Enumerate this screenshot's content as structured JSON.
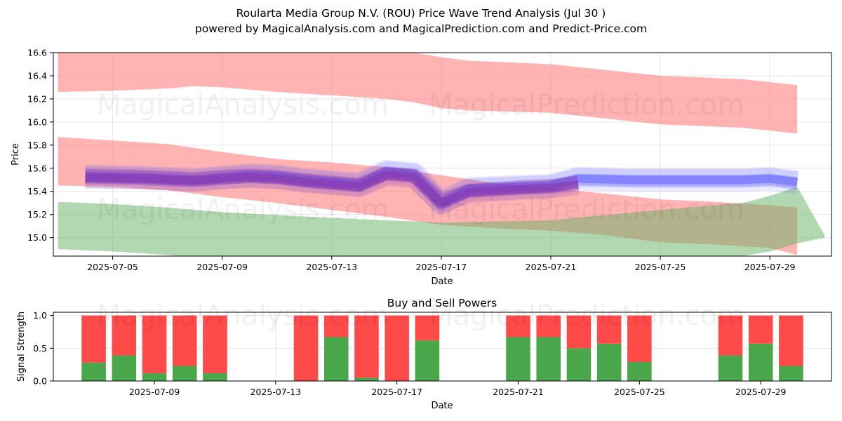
{
  "title": "Roularta Media Group N.V. (ROU) Price Wave Trend Analysis (Jul 30 )",
  "subtitle": "powered by MagicalAnalysis.com and MagicalPrediction.com and Predict-Price.com",
  "watermarks": [
    "MagicalAnalysis.com",
    "MagicalPrediction.com"
  ],
  "colors": {
    "upper_band": "#ff8080",
    "lower_band": "#66b266",
    "mid_band": "#ff8080",
    "actual_wave": "#5555ff",
    "predicted_wave": "#8833aa",
    "buy": "#4aa64a",
    "sell": "#ff4a4a"
  },
  "chart_data": [
    {
      "type": "area",
      "title": "",
      "xlabel": "Date",
      "ylabel": "Price",
      "ylim": [
        14.84,
        16.6
      ],
      "xlim": [
        "2025-07-02T20:00",
        "2025-07-31T06:00"
      ],
      "x_ticks": [
        "2025-07-05",
        "2025-07-09",
        "2025-07-13",
        "2025-07-17",
        "2025-07-21",
        "2025-07-25",
        "2025-07-29"
      ],
      "y_ticks": [
        15.0,
        15.2,
        15.4,
        15.6,
        15.8,
        16.0,
        16.2,
        16.4,
        16.6
      ],
      "grid": true,
      "bands": [
        {
          "name": "upper",
          "x": [
            "2025-07-03",
            "2025-07-05",
            "2025-07-07",
            "2025-07-08",
            "2025-07-09",
            "2025-07-11",
            "2025-07-13",
            "2025-07-15",
            "2025-07-16",
            "2025-07-17",
            "2025-07-18",
            "2025-07-21",
            "2025-07-23",
            "2025-07-25",
            "2025-07-28",
            "2025-07-30"
          ],
          "top": [
            16.78,
            16.78,
            16.76,
            16.74,
            16.73,
            16.68,
            16.65,
            16.62,
            16.6,
            16.56,
            16.53,
            16.5,
            16.45,
            16.4,
            16.37,
            16.32
          ],
          "bottom": [
            16.26,
            16.27,
            16.29,
            16.31,
            16.3,
            16.26,
            16.23,
            16.2,
            16.17,
            16.12,
            16.1,
            16.08,
            16.03,
            15.98,
            15.95,
            15.9
          ]
        },
        {
          "name": "middle",
          "x": [
            "2025-07-03",
            "2025-07-05",
            "2025-07-07",
            "2025-07-09",
            "2025-07-11",
            "2025-07-13",
            "2025-07-15",
            "2025-07-17",
            "2025-07-19",
            "2025-07-21",
            "2025-07-23",
            "2025-07-25",
            "2025-07-27",
            "2025-07-29",
            "2025-07-30"
          ],
          "top": [
            15.87,
            15.84,
            15.81,
            15.74,
            15.68,
            15.65,
            15.61,
            15.54,
            15.47,
            15.43,
            15.38,
            15.33,
            15.31,
            15.28,
            15.26
          ],
          "bottom": [
            15.45,
            15.44,
            15.41,
            15.35,
            15.3,
            15.24,
            15.18,
            15.11,
            15.08,
            15.06,
            15.02,
            14.96,
            14.94,
            14.91,
            14.85
          ]
        },
        {
          "name": "lower",
          "x": [
            "2025-07-03",
            "2025-07-05",
            "2025-07-07",
            "2025-07-09",
            "2025-07-13",
            "2025-07-17",
            "2025-07-21",
            "2025-07-25",
            "2025-07-28",
            "2025-07-29",
            "2025-07-30",
            "2025-07-31"
          ],
          "top": [
            15.31,
            15.29,
            15.26,
            15.22,
            15.17,
            15.13,
            15.15,
            15.24,
            15.3,
            15.36,
            15.44,
            15.02
          ],
          "bottom": [
            14.9,
            14.88,
            14.85,
            14.8,
            14.76,
            14.72,
            14.72,
            14.78,
            14.84,
            14.88,
            14.95,
            15.0
          ]
        }
      ],
      "series": [
        {
          "name": "",
          "role": "actual",
          "x": [
            "2025-07-04",
            "2025-07-06",
            "2025-07-08",
            "2025-07-09",
            "2025-07-10",
            "2025-07-11",
            "2025-07-12",
            "2025-07-13",
            "2025-07-14",
            "2025-07-15",
            "2025-07-16",
            "2025-07-17",
            "2025-07-18",
            "2025-07-20",
            "2025-07-21",
            "2025-07-22",
            "2025-07-24",
            "2025-07-26",
            "2025-07-28",
            "2025-07-29",
            "2025-07-30"
          ],
          "values": [
            15.53,
            15.52,
            15.5,
            15.52,
            15.54,
            15.53,
            15.5,
            15.48,
            15.46,
            15.57,
            15.55,
            15.3,
            15.42,
            15.44,
            15.45,
            15.51,
            15.5,
            15.5,
            15.5,
            15.51,
            15.48
          ]
        },
        {
          "name": "",
          "role": "predicted",
          "x": [
            "2025-07-04",
            "2025-07-06",
            "2025-07-08",
            "2025-07-09",
            "2025-07-10",
            "2025-07-11",
            "2025-07-12",
            "2025-07-13",
            "2025-07-14",
            "2025-07-15",
            "2025-07-16",
            "2025-07-17",
            "2025-07-18",
            "2025-07-20",
            "2025-07-21",
            "2025-07-22"
          ],
          "values": [
            15.52,
            15.51,
            15.49,
            15.51,
            15.52,
            15.51,
            15.48,
            15.46,
            15.44,
            15.54,
            15.52,
            15.3,
            15.39,
            15.42,
            15.43,
            15.46
          ]
        }
      ]
    },
    {
      "type": "bar",
      "title": "Buy and Sell Powers",
      "xlabel": "Date",
      "ylabel": "Signal Strength",
      "ylim": [
        0,
        1.05
      ],
      "xlim": [
        "2025-07-05T16:00",
        "2025-07-31T08:00"
      ],
      "x_ticks": [
        "2025-07-09",
        "2025-07-13",
        "2025-07-17",
        "2025-07-21",
        "2025-07-25",
        "2025-07-29"
      ],
      "y_ticks": [
        0.0,
        0.5,
        1.0
      ],
      "grid": true,
      "categories": [
        "2025-07-07",
        "2025-07-08",
        "2025-07-09",
        "2025-07-10",
        "2025-07-11",
        "2025-07-14",
        "2025-07-15",
        "2025-07-16",
        "2025-07-17",
        "2025-07-18",
        "2025-07-21",
        "2025-07-22",
        "2025-07-23",
        "2025-07-24",
        "2025-07-25",
        "2025-07-28",
        "2025-07-29",
        "2025-07-30"
      ],
      "series": [
        {
          "name": "",
          "role": "buy",
          "values": [
            0.28,
            0.39,
            0.12,
            0.23,
            0.12,
            0.0,
            0.67,
            0.05,
            0.0,
            0.62,
            0.67,
            0.67,
            0.5,
            0.57,
            0.29,
            0.39,
            0.57,
            0.23
          ]
        },
        {
          "name": "",
          "role": "sell",
          "values": [
            0.72,
            0.61,
            0.88,
            0.77,
            0.88,
            1.0,
            0.33,
            0.95,
            1.0,
            0.38,
            0.33,
            0.33,
            0.5,
            0.43,
            0.71,
            0.61,
            0.43,
            0.77
          ]
        }
      ]
    }
  ]
}
